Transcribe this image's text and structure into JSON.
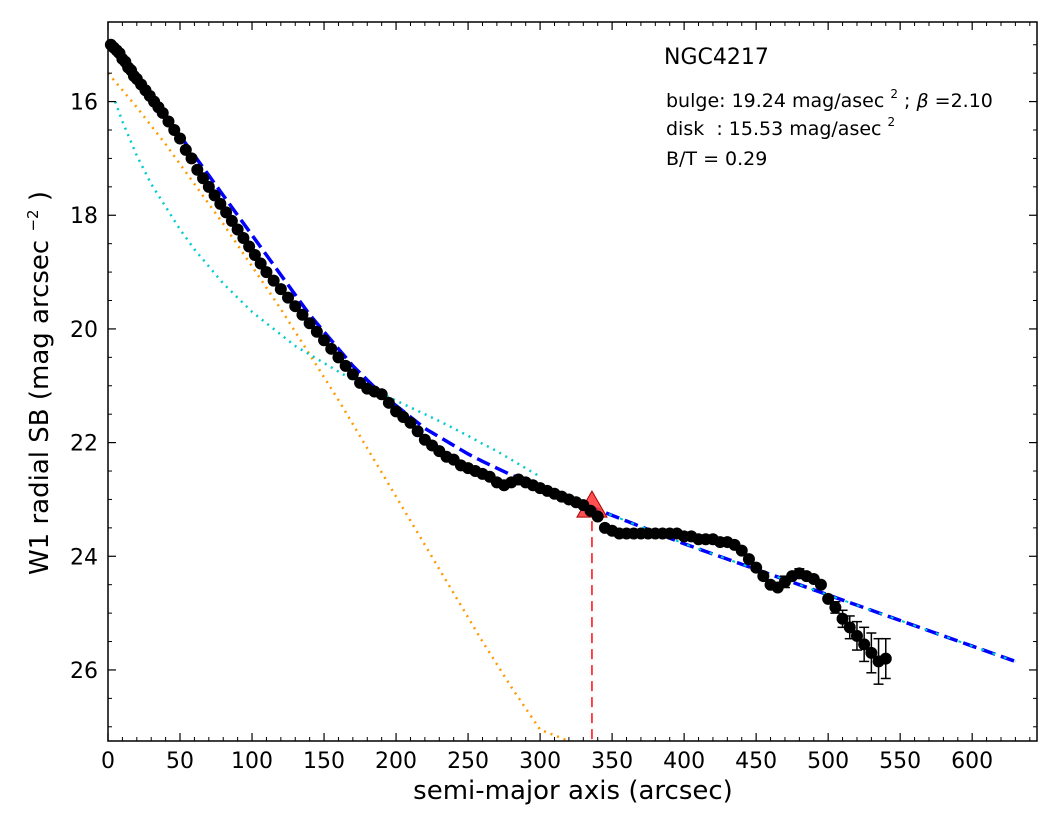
{
  "chart_data": {
    "type": "scatter",
    "title": "NGC4217",
    "xlabel": "semi-major axis (arcsec)",
    "ylabel": "W1 radial SB (mag arcsec",
    "ylabel_exponent": "−2",
    "ylabel_suffix": ")",
    "xlim": [
      0,
      645
    ],
    "ylim": [
      27.25,
      14.6
    ],
    "y_inverted": true,
    "grid": false,
    "x_ticks": [
      "0",
      "50",
      "100",
      "150",
      "200",
      "250",
      "300",
      "350",
      "400",
      "450",
      "500",
      "550",
      "600"
    ],
    "x_tick_values": [
      0,
      50,
      100,
      150,
      200,
      250,
      300,
      350,
      400,
      450,
      500,
      550,
      600
    ],
    "y_ticks": [
      "16",
      "18",
      "20",
      "22",
      "24",
      "26"
    ],
    "y_tick_values": [
      16,
      18,
      20,
      22,
      24,
      26
    ],
    "annotations": {
      "bulge_label": "bulge: 19.24 mag/asec",
      "bulge_sup": "2",
      "bulge_sep": " ; ",
      "beta_symbol": "β",
      "beta_value": "=2.10",
      "disk_label": "disk  : 15.53 mag/asec",
      "disk_sup": "2",
      "bt_label": "B/T = 0.29"
    },
    "colors": {
      "points": "#000000",
      "model_total": "#0000ff",
      "bulge_component": "#ff9900",
      "disk_component": "#00cccc",
      "marker": "#ff3333"
    },
    "series": [
      {
        "name": "",
        "style": "points_with_errorbars",
        "x": [
          2,
          4,
          6,
          8,
          10,
          12,
          14,
          16,
          18,
          20,
          23,
          26,
          29,
          32,
          35,
          38,
          42,
          46,
          50,
          54,
          58,
          62,
          66,
          70,
          74,
          78,
          82,
          86,
          90,
          94,
          98,
          102,
          106,
          110,
          115,
          120,
          125,
          130,
          135,
          140,
          145,
          150,
          155,
          160,
          165,
          170,
          175,
          180,
          185,
          190,
          195,
          200,
          205,
          210,
          215,
          220,
          225,
          230,
          235,
          240,
          245,
          250,
          255,
          260,
          265,
          270,
          275,
          280,
          285,
          290,
          295,
          300,
          305,
          310,
          315,
          320,
          325,
          330,
          335,
          340,
          345,
          350,
          355,
          360,
          365,
          370,
          375,
          380,
          385,
          390,
          395,
          400,
          405,
          410,
          415,
          420,
          425,
          430,
          435,
          440,
          445,
          450,
          455,
          460,
          465,
          470,
          475,
          480,
          485,
          490,
          495,
          500,
          505,
          510,
          515,
          520,
          525,
          530,
          535,
          540
        ],
        "y": [
          15.0,
          15.05,
          15.1,
          15.15,
          15.25,
          15.3,
          15.4,
          15.45,
          15.55,
          15.6,
          15.7,
          15.8,
          15.9,
          16.0,
          16.1,
          16.2,
          16.35,
          16.5,
          16.65,
          16.85,
          17.0,
          17.2,
          17.35,
          17.5,
          17.65,
          17.8,
          17.95,
          18.1,
          18.25,
          18.4,
          18.55,
          18.7,
          18.85,
          19.0,
          19.15,
          19.3,
          19.45,
          19.6,
          19.75,
          19.9,
          20.05,
          20.2,
          20.35,
          20.5,
          20.65,
          20.8,
          20.95,
          21.05,
          21.1,
          21.15,
          21.3,
          21.45,
          21.55,
          21.65,
          21.8,
          21.95,
          22.05,
          22.15,
          22.25,
          22.3,
          22.4,
          22.45,
          22.5,
          22.55,
          22.6,
          22.7,
          22.75,
          22.7,
          22.65,
          22.7,
          22.75,
          22.8,
          22.85,
          22.9,
          22.95,
          23.0,
          23.05,
          23.1,
          23.2,
          23.3,
          23.5,
          23.55,
          23.6,
          23.6,
          23.6,
          23.6,
          23.6,
          23.6,
          23.6,
          23.6,
          23.6,
          23.65,
          23.65,
          23.7,
          23.7,
          23.7,
          23.75,
          23.75,
          23.8,
          23.9,
          24.05,
          24.2,
          24.35,
          24.5,
          24.55,
          24.45,
          24.35,
          24.3,
          24.35,
          24.4,
          24.5,
          24.75,
          24.9,
          25.1,
          25.25,
          25.4,
          25.55,
          25.7,
          25.85,
          25.8
        ],
        "yerr": [
          0,
          0,
          0,
          0,
          0,
          0,
          0,
          0,
          0,
          0,
          0,
          0,
          0,
          0,
          0,
          0,
          0,
          0,
          0,
          0,
          0,
          0,
          0,
          0,
          0,
          0,
          0,
          0,
          0,
          0,
          0,
          0,
          0,
          0,
          0,
          0,
          0,
          0,
          0,
          0,
          0,
          0,
          0,
          0,
          0,
          0,
          0,
          0,
          0,
          0,
          0,
          0,
          0,
          0,
          0,
          0,
          0,
          0,
          0,
          0,
          0,
          0,
          0,
          0,
          0,
          0,
          0,
          0,
          0,
          0,
          0,
          0,
          0,
          0,
          0,
          0,
          0,
          0,
          0,
          0,
          0,
          0,
          0,
          0,
          0,
          0,
          0,
          0,
          0,
          0,
          0,
          0,
          0,
          0,
          0,
          0,
          0,
          0,
          0,
          0,
          0,
          0,
          0,
          0,
          0,
          0.1,
          0,
          0.08,
          0,
          0,
          0,
          0,
          0.1,
          0.15,
          0.2,
          0.25,
          0.3,
          0.35,
          0.4,
          0.35
        ]
      },
      {
        "name": "",
        "style": "dashed",
        "color": "#0000ff",
        "x": [
          0,
          10,
          20,
          30,
          40,
          50,
          60,
          70,
          80,
          90,
          100,
          110,
          120,
          130,
          140,
          150,
          160,
          170,
          180,
          190,
          200,
          210,
          220,
          230,
          240,
          250,
          260,
          270,
          280,
          290,
          300,
          310,
          320,
          330,
          340,
          350,
          360,
          370,
          380,
          390,
          400,
          410,
          420,
          430,
          440,
          450,
          460,
          470,
          480,
          490,
          500,
          510,
          520,
          530,
          540,
          550,
          560,
          570,
          580,
          590,
          600,
          610,
          620,
          630
        ],
        "y": [
          15.0,
          15.35,
          15.7,
          16.0,
          16.3,
          16.6,
          16.95,
          17.3,
          17.65,
          18.0,
          18.35,
          18.7,
          19.05,
          19.4,
          19.75,
          20.05,
          20.35,
          20.65,
          20.9,
          21.15,
          21.35,
          21.55,
          21.75,
          21.9,
          22.05,
          22.2,
          22.33,
          22.45,
          22.57,
          22.68,
          22.78,
          22.88,
          22.98,
          23.08,
          23.18,
          23.28,
          23.38,
          23.48,
          23.58,
          23.68,
          23.78,
          23.87,
          23.96,
          24.05,
          24.14,
          24.23,
          24.32,
          24.41,
          24.5,
          24.59,
          24.68,
          24.77,
          24.86,
          24.95,
          25.04,
          25.13,
          25.22,
          25.31,
          25.4,
          25.49,
          25.58,
          25.67,
          25.76,
          25.85
        ]
      },
      {
        "name": "",
        "style": "dotted",
        "color": "#ff9900",
        "x": [
          0,
          20,
          40,
          60,
          80,
          100,
          120,
          140,
          160,
          180,
          200,
          220,
          240,
          260,
          280,
          300,
          320
        ],
        "y": [
          15.5,
          16.1,
          16.75,
          17.45,
          18.15,
          18.9,
          19.65,
          20.45,
          21.25,
          22.1,
          22.95,
          23.8,
          24.65,
          25.5,
          26.3,
          27.05,
          27.3
        ]
      },
      {
        "name": "",
        "style": "dotted",
        "color": "#00cccc",
        "x": [
          5,
          10,
          20,
          30,
          40,
          50,
          60,
          70,
          80,
          90,
          100,
          110,
          120,
          130,
          140,
          150,
          160,
          170,
          180,
          190,
          200,
          210,
          220,
          230,
          240,
          250,
          260,
          270,
          280,
          290,
          300
        ],
        "y": [
          16.0,
          16.35,
          16.95,
          17.45,
          17.85,
          18.25,
          18.6,
          18.9,
          19.2,
          19.45,
          19.7,
          19.9,
          20.1,
          20.3,
          20.45,
          20.6,
          20.75,
          20.9,
          21.02,
          21.14,
          21.26,
          21.38,
          21.5,
          21.62,
          21.75,
          21.88,
          22.02,
          22.15,
          22.3,
          22.45,
          22.6
        ]
      }
    ],
    "marker": {
      "shape": "triangle",
      "x": 336,
      "y": 23.1,
      "drop_line_to": 27.25
    }
  }
}
